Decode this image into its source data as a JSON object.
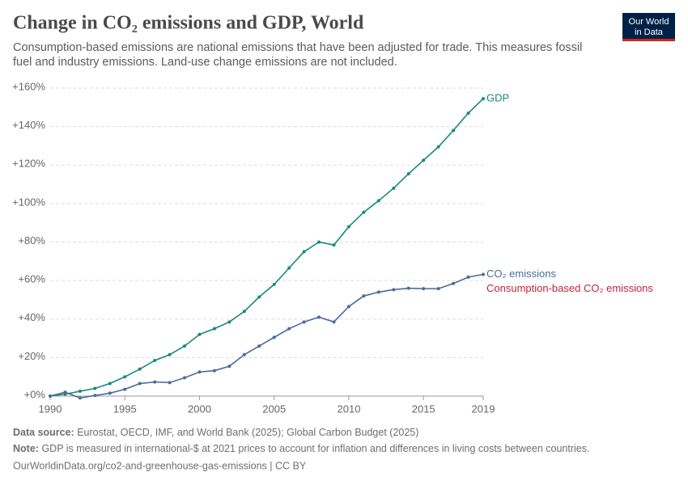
{
  "chart_data": {
    "type": "line",
    "title": "Change in CO₂ emissions and GDP, World",
    "subtitle": "Consumption-based emissions are national emissions that have been adjusted for trade. This measures fossil fuel and industry emissions. Land-use change emissions are not included.",
    "logo": [
      "Our World",
      "in Data"
    ],
    "x": [
      1990,
      1991,
      1992,
      1993,
      1994,
      1995,
      1996,
      1997,
      1998,
      1999,
      2000,
      2001,
      2002,
      2003,
      2004,
      2005,
      2006,
      2007,
      2008,
      2009,
      2010,
      2011,
      2012,
      2013,
      2014,
      2015,
      2016,
      2017,
      2018,
      2019
    ],
    "series": [
      {
        "name": "GDP",
        "color": "#18897a",
        "values": [
          0,
          1,
          2.5,
          4,
          6.5,
          10,
          14,
          18.5,
          21.5,
          26,
          32,
          35,
          38.5,
          44,
          51.5,
          58,
          66.5,
          75,
          80,
          78.5,
          88,
          95.5,
          101.5,
          108,
          115.5,
          122.5,
          129.5,
          138,
          147,
          154.5
        ]
      },
      {
        "name": "CO₂ emissions",
        "color": "#4c6a9c",
        "values": [
          0,
          2,
          -1,
          0.3,
          1.5,
          3.5,
          6.5,
          7.3,
          7,
          9.5,
          12.5,
          13.2,
          15.5,
          21.5,
          26,
          30.5,
          35,
          38.5,
          41,
          38.5,
          46.5,
          52,
          54,
          55.3,
          56,
          55.8,
          55.8,
          58.5,
          61.8,
          63.2
        ]
      },
      {
        "name": "Consumption-based CO₂ emissions",
        "color": "#c4243d",
        "values": [
          null,
          null,
          null,
          null,
          null,
          null,
          null,
          null,
          null,
          null,
          null,
          null,
          null,
          null,
          null,
          null,
          null,
          null,
          null,
          null,
          null,
          null,
          null,
          null,
          null,
          null,
          null,
          null,
          null,
          null
        ]
      }
    ],
    "xlim": [
      1990,
      2019
    ],
    "xticks": [
      1990,
      1995,
      2000,
      2005,
      2010,
      2015,
      2019
    ],
    "ylim": [
      0,
      160
    ],
    "yticks": [
      {
        "value": 0,
        "label": "+0%"
      },
      {
        "value": 20,
        "label": "+20%"
      },
      {
        "value": 40,
        "label": "+40%"
      },
      {
        "value": 60,
        "label": "+60%"
      },
      {
        "value": 80,
        "label": "+80%"
      },
      {
        "value": 100,
        "label": "+100%"
      },
      {
        "value": 120,
        "label": "+120%"
      },
      {
        "value": 140,
        "label": "+140%"
      },
      {
        "value": 160,
        "label": "+160%"
      }
    ],
    "grid": true,
    "source_label": "Data source:",
    "source": "Eurostat, OECD, IMF, and World Bank (2025); Global Carbon Budget (2025)",
    "note_label": "Note:",
    "note": "GDP is measured in international-$ at 2021 prices to account for inflation and differences in living costs between countries.",
    "url": "OurWorldinData.org/co2-and-greenhouse-gas-emissions | CC BY"
  }
}
